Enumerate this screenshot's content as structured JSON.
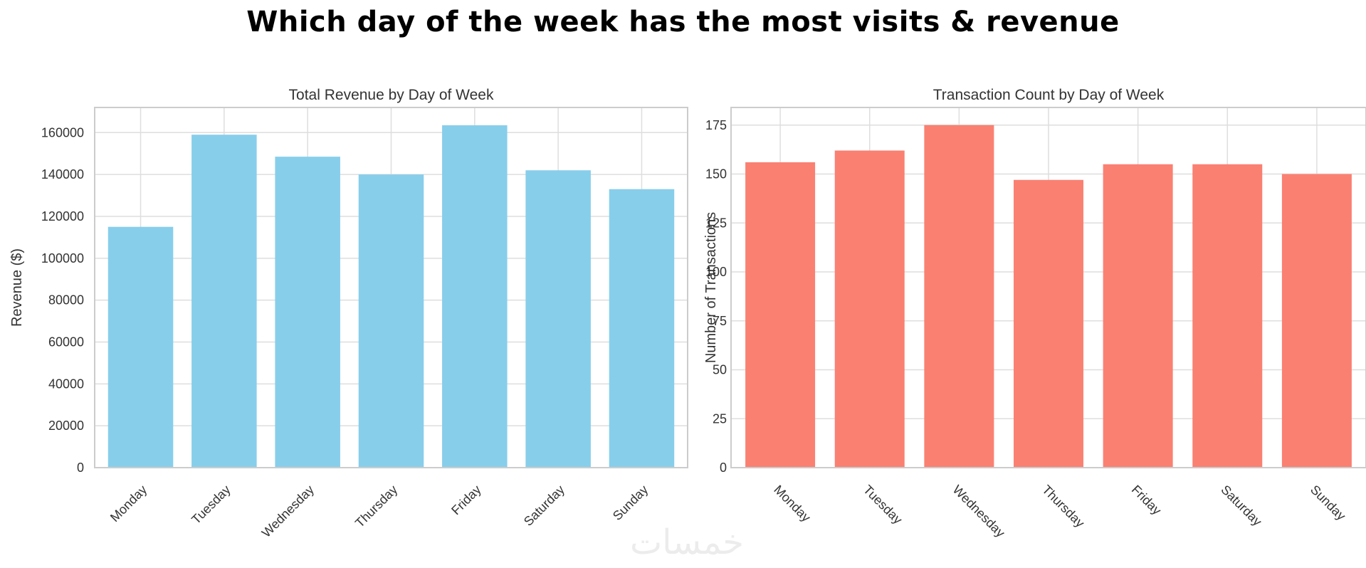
{
  "title": "Which day of the week has the most visits & revenue",
  "watermark": "خمسات",
  "chart_data": [
    {
      "type": "bar",
      "title": "Total Revenue by Day of Week",
      "xlabel": "",
      "ylabel": "Revenue ($)",
      "categories": [
        "Monday",
        "Tuesday",
        "Wednesday",
        "Thursday",
        "Friday",
        "Saturday",
        "Sunday"
      ],
      "values": [
        115000,
        159000,
        148500,
        140000,
        163500,
        142000,
        133000
      ],
      "ylim": [
        0,
        172000
      ],
      "yticks": [
        0,
        20000,
        40000,
        60000,
        80000,
        100000,
        120000,
        140000,
        160000
      ],
      "color": "#87CEEB",
      "grid": true,
      "tick_rotation": 45
    },
    {
      "type": "bar",
      "title": "Transaction Count by Day of Week",
      "xlabel": "",
      "ylabel": "Number of Transactions",
      "categories": [
        "Monday",
        "Tuesday",
        "Wednesday",
        "Thursday",
        "Friday",
        "Saturday",
        "Sunday"
      ],
      "values": [
        156,
        162,
        175,
        147,
        155,
        155,
        150
      ],
      "ylim": [
        0,
        184
      ],
      "yticks": [
        0,
        25,
        50,
        75,
        100,
        125,
        150,
        175
      ],
      "color": "#FA8072",
      "grid": true,
      "tick_rotation": -45
    }
  ]
}
